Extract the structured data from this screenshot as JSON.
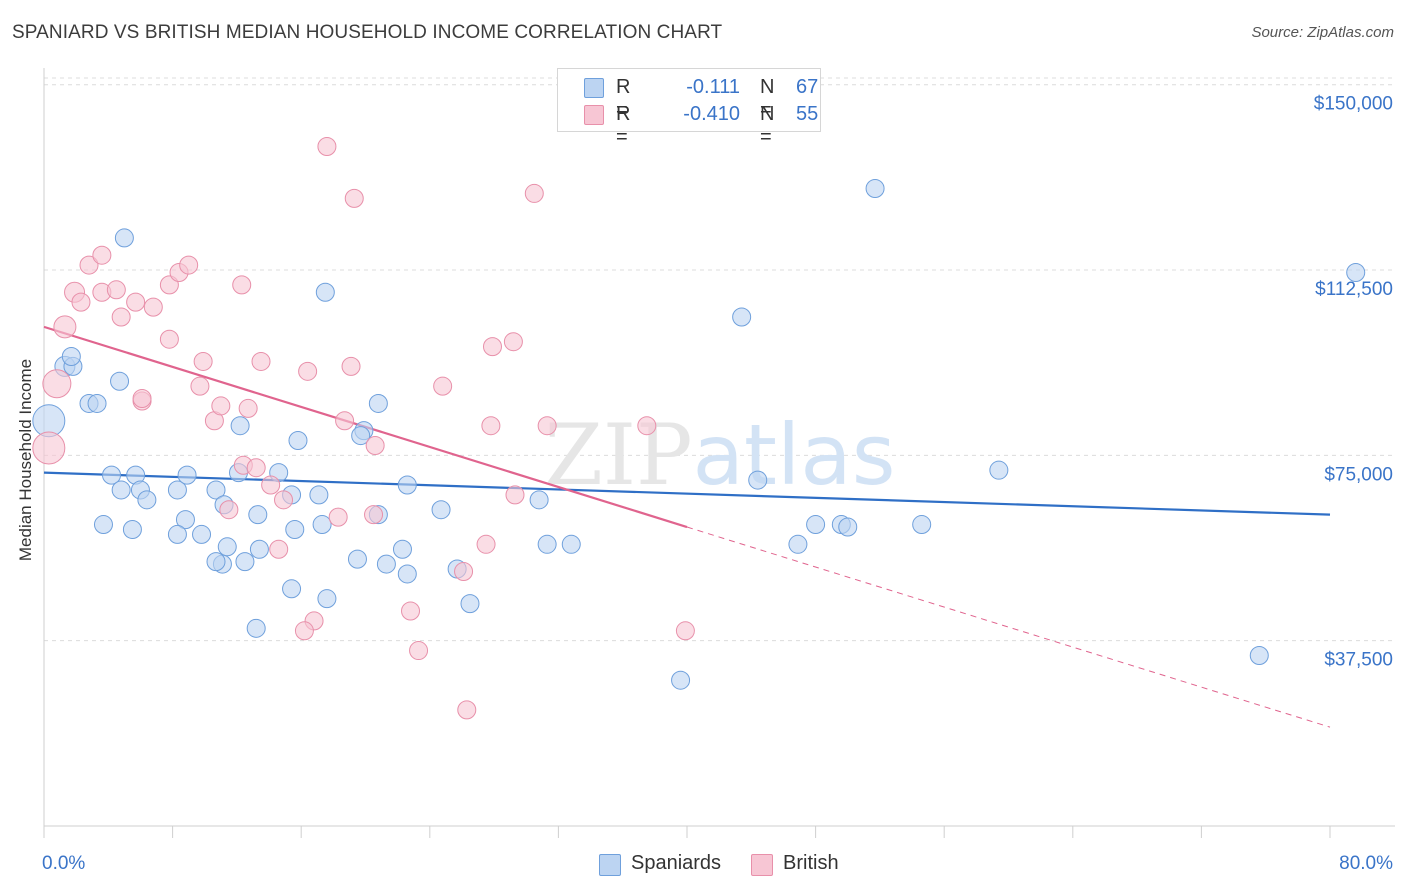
{
  "chart_data": {
    "type": "scatter",
    "title": "SPANIARD VS BRITISH MEDIAN HOUSEHOLD INCOME CORRELATION CHART",
    "source": "Source: ZipAtlas.com",
    "xlabel": "",
    "ylabel": "Median Household Income",
    "xlim": [
      0,
      80
    ],
    "ylim": [
      0,
      155000
    ],
    "x_tick_labels": [
      "0.0%",
      "80.0%"
    ],
    "y_ticks": [
      37500,
      75000,
      112500,
      150000
    ],
    "y_tick_labels": [
      "$37,500",
      "$75,000",
      "$112,500",
      "$150,000"
    ],
    "watermark": "ZIPatlas",
    "legend": {
      "rows": [
        {
          "r_label": "R =",
          "r_value": "-0.111",
          "n_label": "N =",
          "n_value": "67"
        },
        {
          "r_label": "R =",
          "r_value": "-0.410",
          "n_label": "N =",
          "n_value": "55"
        }
      ]
    },
    "series": [
      {
        "name": "Spaniards",
        "color": "#6fa0dc",
        "fill": "#bcd4f2",
        "trend": {
          "x0": 0,
          "y0": 71500,
          "x1": 80,
          "y1": 63000,
          "solid_until": 80
        },
        "points": [
          [
            0.3,
            82000,
            16
          ],
          [
            1.3,
            93000,
            10
          ],
          [
            1.8,
            93000,
            9
          ],
          [
            1.7,
            95000,
            9
          ],
          [
            2.8,
            85500,
            9
          ],
          [
            3.3,
            85500,
            9
          ],
          [
            4.7,
            90000,
            9
          ],
          [
            5.0,
            119000,
            9
          ],
          [
            17.5,
            108000,
            9
          ],
          [
            20.8,
            85500,
            9
          ],
          [
            19.9,
            80000,
            9
          ],
          [
            15.8,
            78000,
            9
          ],
          [
            12.2,
            81000,
            9
          ],
          [
            4.2,
            71000,
            9
          ],
          [
            4.8,
            68000,
            9
          ],
          [
            5.7,
            71000,
            9
          ],
          [
            6.0,
            68000,
            9
          ],
          [
            6.4,
            66000,
            9
          ],
          [
            8.3,
            68000,
            9
          ],
          [
            8.9,
            71000,
            9
          ],
          [
            10.7,
            68000,
            9
          ],
          [
            11.2,
            65000,
            9
          ],
          [
            12.1,
            71500,
            9
          ],
          [
            13.3,
            63000,
            9
          ],
          [
            14.6,
            71500,
            9
          ],
          [
            15.4,
            67000,
            9
          ],
          [
            17.1,
            67000,
            9
          ],
          [
            19.7,
            79000,
            9
          ],
          [
            20.8,
            63000,
            9
          ],
          [
            22.6,
            69000,
            9
          ],
          [
            24.7,
            64000,
            9
          ],
          [
            11.4,
            56500,
            9
          ],
          [
            13.4,
            56000,
            9
          ],
          [
            11.1,
            53000,
            9
          ],
          [
            10.7,
            53500,
            9
          ],
          [
            9.8,
            59000,
            9
          ],
          [
            12.5,
            53500,
            9
          ],
          [
            15.6,
            60000,
            9
          ],
          [
            17.3,
            61000,
            9
          ],
          [
            19.5,
            54000,
            9
          ],
          [
            21.3,
            53000,
            9
          ],
          [
            22.3,
            56000,
            9
          ],
          [
            22.6,
            51000,
            9
          ],
          [
            25.7,
            52000,
            9
          ],
          [
            26.5,
            45000,
            9
          ],
          [
            15.4,
            48000,
            9
          ],
          [
            17.6,
            46000,
            9
          ],
          [
            13.2,
            40000,
            9
          ],
          [
            3.7,
            61000,
            9
          ],
          [
            5.5,
            60000,
            9
          ],
          [
            8.8,
            62000,
            9
          ],
          [
            8.3,
            59000,
            9
          ],
          [
            31.3,
            57000,
            9
          ],
          [
            32.8,
            57000,
            9
          ],
          [
            30.8,
            66000,
            9
          ],
          [
            43.4,
            103000,
            9
          ],
          [
            44.4,
            70000,
            9
          ],
          [
            46.9,
            57000,
            9
          ],
          [
            48.0,
            61000,
            9
          ],
          [
            49.6,
            61000,
            9
          ],
          [
            50.0,
            60500,
            9
          ],
          [
            54.6,
            61000,
            9
          ],
          [
            51.7,
            129000,
            9
          ],
          [
            59.4,
            72000,
            9
          ],
          [
            81.6,
            112000,
            9
          ],
          [
            75.6,
            34500,
            9
          ],
          [
            39.6,
            29500,
            9
          ]
        ]
      },
      {
        "name": "British",
        "color": "#e890aa",
        "fill": "#f7c6d4",
        "trend": {
          "x0": 0,
          "y0": 101000,
          "x1": 80,
          "y1": 20000,
          "solid_until": 40
        },
        "points": [
          [
            0.3,
            76500,
            16
          ],
          [
            0.8,
            89500,
            14
          ],
          [
            1.3,
            101000,
            11
          ],
          [
            1.9,
            108000,
            10
          ],
          [
            2.3,
            106000,
            9
          ],
          [
            2.8,
            113500,
            9
          ],
          [
            3.6,
            115500,
            9
          ],
          [
            3.6,
            108000,
            9
          ],
          [
            4.5,
            108500,
            9
          ],
          [
            4.8,
            103000,
            9
          ],
          [
            5.7,
            106000,
            9
          ],
          [
            6.8,
            105000,
            9
          ],
          [
            7.8,
            109500,
            9
          ],
          [
            8.4,
            112000,
            9
          ],
          [
            9.0,
            113500,
            9
          ],
          [
            12.3,
            109500,
            9
          ],
          [
            7.8,
            98500,
            9
          ],
          [
            9.7,
            89000,
            9
          ],
          [
            9.9,
            94000,
            9
          ],
          [
            10.6,
            82000,
            9
          ],
          [
            6.1,
            86000,
            9
          ],
          [
            6.1,
            86500,
            9
          ],
          [
            11.0,
            85000,
            9
          ],
          [
            12.7,
            84500,
            9
          ],
          [
            13.5,
            94000,
            9
          ],
          [
            16.4,
            92000,
            9
          ],
          [
            19.1,
            93000,
            9
          ],
          [
            18.7,
            82000,
            9
          ],
          [
            20.6,
            77000,
            9
          ],
          [
            12.4,
            73000,
            9
          ],
          [
            13.2,
            72500,
            9
          ],
          [
            14.1,
            69000,
            9
          ],
          [
            14.9,
            66000,
            9
          ],
          [
            11.5,
            64000,
            9
          ],
          [
            18.3,
            62500,
            9
          ],
          [
            20.5,
            63000,
            9
          ],
          [
            17.6,
            137500,
            9
          ],
          [
            19.3,
            127000,
            9
          ],
          [
            30.5,
            128000,
            9
          ],
          [
            27.9,
            97000,
            9
          ],
          [
            29.2,
            98000,
            9
          ],
          [
            24.8,
            89000,
            9
          ],
          [
            31.3,
            81000,
            9
          ],
          [
            37.5,
            81000,
            9
          ],
          [
            29.3,
            67000,
            9
          ],
          [
            14.6,
            56000,
            9
          ],
          [
            27.5,
            57000,
            9
          ],
          [
            26.1,
            51500,
            9
          ],
          [
            22.8,
            43500,
            9
          ],
          [
            16.8,
            41500,
            9
          ],
          [
            16.2,
            39500,
            9
          ],
          [
            23.3,
            35500,
            9
          ],
          [
            39.9,
            39500,
            9
          ],
          [
            26.3,
            23500,
            9
          ],
          [
            27.8,
            81000,
            9
          ]
        ]
      }
    ]
  }
}
